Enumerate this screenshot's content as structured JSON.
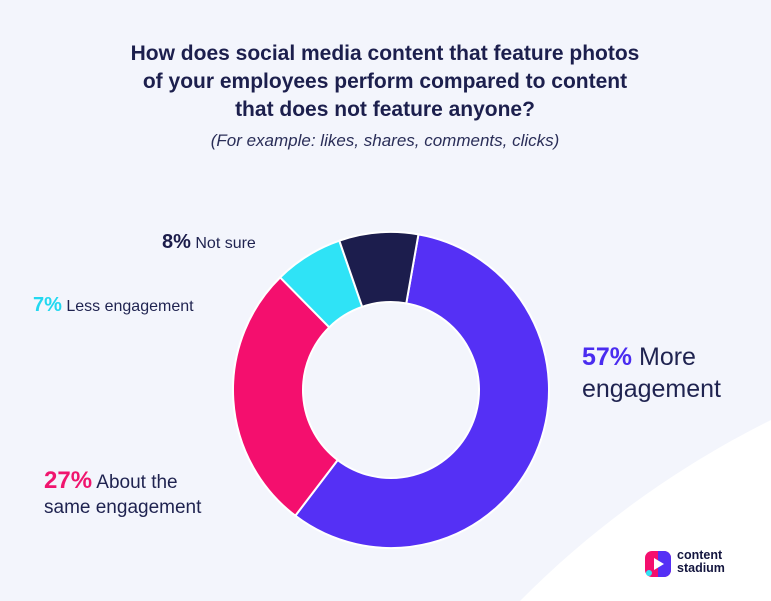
{
  "title_lines": [
    "How does social media content that feature photos",
    "of your employees perform compared to content",
    "that does not feature anyone?"
  ],
  "subtitle": "(For example: likes, shares, comments, clicks)",
  "chart_data": {
    "type": "pie",
    "donut": true,
    "title": "How does social media content that feature photos of your employees perform compared to content that does not feature anyone?",
    "subtitle": "(For example: likes, shares, comments, clicks)",
    "series": [
      {
        "name": "More engagement",
        "value": 57,
        "pct_label": "57%",
        "color": "#5530f5"
      },
      {
        "name": "About the same engagement",
        "value": 27,
        "pct_label": "27%",
        "color": "#f40f6e"
      },
      {
        "name": "Less engagement",
        "value": 7,
        "pct_label": "7%",
        "color": "#2fe3f6"
      },
      {
        "name": "Not sure",
        "value": 8,
        "pct_label": "8%",
        "color": "#1c1d4d"
      }
    ],
    "labels": {
      "more": {
        "pct": "57%",
        "lines": [
          "More",
          "engagement"
        ]
      },
      "same": {
        "pct": "27%",
        "lines": [
          "About the",
          "same engagement"
        ]
      },
      "less": {
        "pct": "7%",
        "text": "Less engagement"
      },
      "not_sure": {
        "pct": "8%",
        "text": "Not sure"
      }
    }
  },
  "brand": {
    "logo_lines": [
      "content",
      "stadium"
    ],
    "logo_colors": [
      "#5530f5",
      "#f40f6e",
      "#2fe3f6"
    ]
  }
}
